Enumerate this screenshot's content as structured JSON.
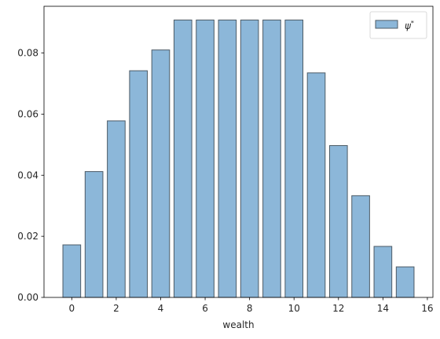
{
  "chart_data": {
    "type": "bar",
    "x": [
      0,
      1,
      2,
      3,
      4,
      5,
      6,
      7,
      8,
      9,
      10,
      11,
      12,
      13,
      14,
      15
    ],
    "series": [
      {
        "name": "ψ*",
        "values": [
          0.0172,
          0.0412,
          0.0578,
          0.0742,
          0.081,
          0.0908,
          0.0908,
          0.0908,
          0.0908,
          0.0908,
          0.0908,
          0.0735,
          0.0497,
          0.0333,
          0.0167,
          0.01
        ]
      }
    ],
    "xlabel": "wealth",
    "ylabel": "",
    "xlim": [
      -1.25,
      16.25
    ],
    "ylim": [
      0,
      0.0953
    ],
    "xticks": [
      0,
      2,
      4,
      6,
      8,
      10,
      12,
      14,
      16
    ],
    "yticks": [
      0.0,
      0.02,
      0.04,
      0.06,
      0.08
    ],
    "ytick_labels": [
      "0.00",
      "0.02",
      "0.04",
      "0.06",
      "0.08"
    ],
    "legend": {
      "placement": "top-right",
      "label_base": "ψ",
      "label_sup": "*"
    },
    "bar_color": "#8cb7d9",
    "bar_edge_color": "#4d5b66",
    "grid": false
  }
}
